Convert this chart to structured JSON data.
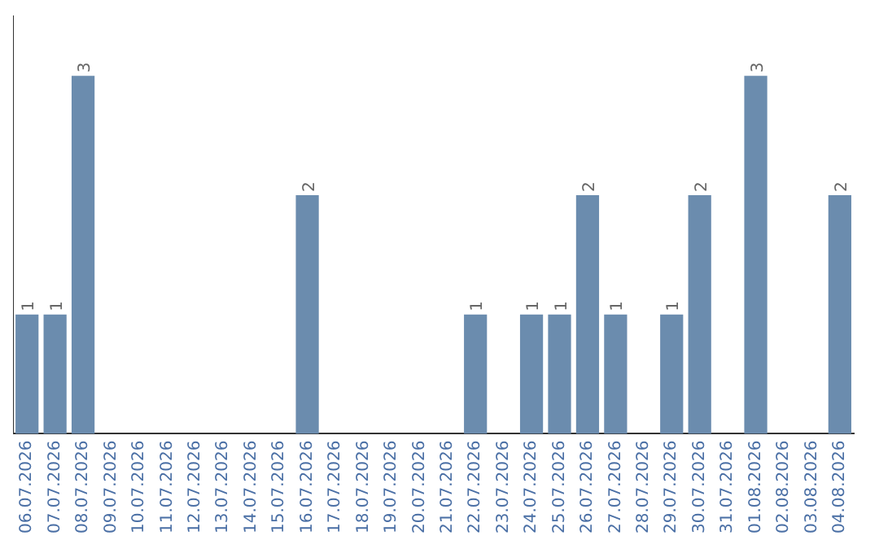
{
  "chart_data": {
    "type": "bar",
    "categories": [
      "06.07.2026",
      "07.07.2026",
      "08.07.2026",
      "09.07.2026",
      "10.07.2026",
      "11.07.2026",
      "12.07.2026",
      "13.07.2026",
      "14.07.2026",
      "15.07.2026",
      "16.07.2026",
      "17.07.2026",
      "18.07.2026",
      "19.07.2026",
      "20.07.2026",
      "21.07.2026",
      "22.07.2026",
      "23.07.2026",
      "24.07.2026",
      "25.07.2026",
      "26.07.2026",
      "27.07.2026",
      "28.07.2026",
      "29.07.2026",
      "30.07.2026",
      "31.07.2026",
      "01.08.2026",
      "02.08.2026",
      "03.08.2026",
      "04.08.2026"
    ],
    "values": [
      1,
      1,
      3,
      0,
      0,
      0,
      0,
      0,
      0,
      0,
      2,
      0,
      0,
      0,
      0,
      0,
      1,
      0,
      1,
      1,
      2,
      1,
      0,
      1,
      2,
      0,
      3,
      0,
      0,
      2
    ],
    "value_labels": [
      "1",
      "1",
      "3",
      null,
      null,
      null,
      null,
      null,
      null,
      null,
      "2",
      null,
      null,
      null,
      null,
      null,
      "1",
      null,
      "1",
      "1",
      "2",
      "1",
      null,
      "1",
      "2",
      null,
      "3",
      null,
      null,
      "2"
    ],
    "color": "#6b8cae",
    "tick_labels": "x",
    "grid": false,
    "legend": false
  }
}
